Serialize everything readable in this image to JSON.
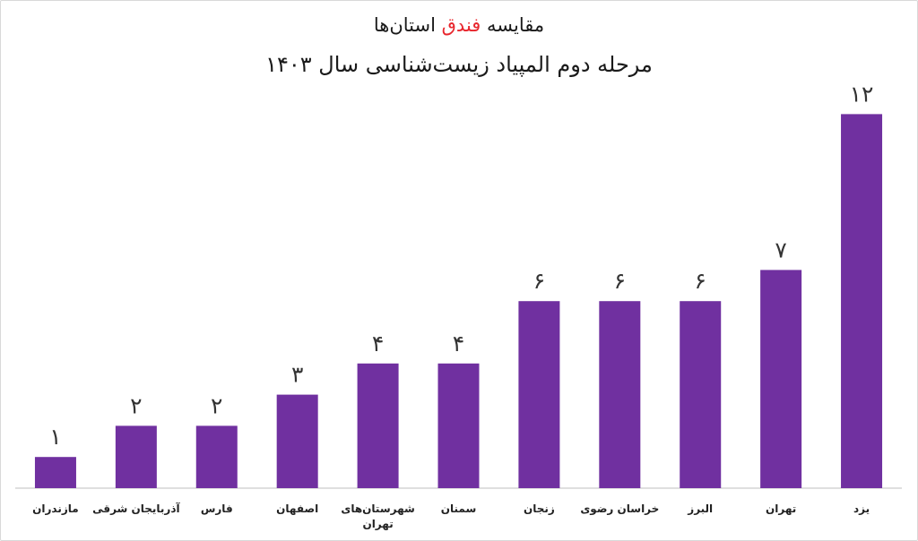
{
  "title": {
    "line1_before": "مقایسه ",
    "line1_accent": "فندق",
    "line1_after": " استان‌ها",
    "line2": "مرحله دوم المپیاد زیست‌شناسی سال ۱۴۰۳"
  },
  "colors": {
    "bar": "#7030a0",
    "title_accent": "#e8262d",
    "axis": "#bfbfbf"
  },
  "chart_data": {
    "type": "bar",
    "categories": [
      "مازندران",
      "آذربایجان شرقی",
      "فارس",
      "اصفهان",
      "شهرستان‌های تهران",
      "سمنان",
      "زنجان",
      "خراسان رضوی",
      "البرز",
      "تهران",
      "یزد"
    ],
    "category_lines": [
      [
        "مازندران"
      ],
      [
        "آذربایجان شرقی"
      ],
      [
        "فارس"
      ],
      [
        "اصفهان"
      ],
      [
        "شهرستان‌های",
        "تهران"
      ],
      [
        "سمنان"
      ],
      [
        "زنجان"
      ],
      [
        "خراسان رضوی"
      ],
      [
        "البرز"
      ],
      [
        "تهران"
      ],
      [
        "یزد"
      ]
    ],
    "values": [
      1,
      2,
      2,
      3,
      4,
      4,
      6,
      6,
      6,
      7,
      12
    ],
    "value_labels": [
      "۱",
      "۲",
      "۲",
      "۳",
      "۴",
      "۴",
      "۶",
      "۶",
      "۶",
      "۷",
      "۱۲"
    ],
    "ylim": [
      0,
      12.5
    ],
    "grid": false,
    "legend": "none"
  }
}
